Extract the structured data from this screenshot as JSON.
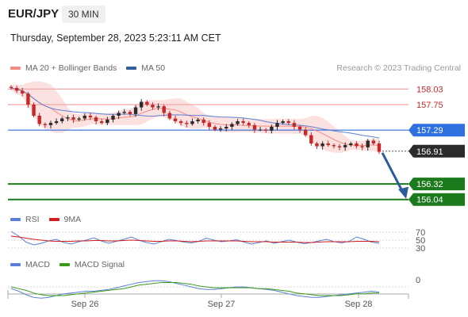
{
  "header": {
    "symbol": "EUR/JPY",
    "timeframe": "30 MIN",
    "timestamp": "Thursday, September 28, 2023 5:23:11 AM CET",
    "credit": "Research © 2023 Trading Central"
  },
  "legends": {
    "main": [
      {
        "label": "MA 20 + Bollinger Bands",
        "color": "#f28b82"
      },
      {
        "label": "MA 50",
        "color": "#2f5f9e"
      }
    ],
    "rsi": [
      {
        "label": "RSI",
        "color": "#5b7fd6"
      },
      {
        "label": "9MA",
        "color": "#d11f1f"
      }
    ],
    "macd": [
      {
        "label": "MACD",
        "color": "#5b7fd6"
      },
      {
        "label": "MACD Signal",
        "color": "#3a9a1a"
      }
    ]
  },
  "colors": {
    "resistance": "#f4a6a6",
    "resistance_text": "#c62828",
    "pivot": "#2f6fe0",
    "support": "#1b7a1b",
    "current": "#2b2b2b",
    "arrow": "#2a5d9b",
    "candle_up": "#2b2b2b",
    "candle_down": "#c62828",
    "band_fill": "#fbdcdc"
  },
  "chart_data": [
    {
      "type": "candlestick",
      "title": "EUR/JPY 30 MIN",
      "x_ticks": [
        "Sep 26",
        "Sep 27",
        "Sep 28"
      ],
      "ylim": [
        155.95,
        158.15
      ],
      "levels": [
        {
          "label": "158.03",
          "value": 158.03,
          "kind": "resistance"
        },
        {
          "label": "157.75",
          "value": 157.75,
          "kind": "resistance"
        },
        {
          "label": "157.29",
          "value": 157.29,
          "kind": "pivot"
        },
        {
          "label": "156.91",
          "value": 156.91,
          "kind": "current"
        },
        {
          "label": "156.32",
          "value": 156.32,
          "kind": "support"
        },
        {
          "label": "156.04",
          "value": 156.04,
          "kind": "support"
        }
      ],
      "forecast_arrow": {
        "from": 156.91,
        "to": 156.11
      },
      "close_series": [
        158.05,
        158.0,
        157.95,
        157.75,
        157.55,
        157.4,
        157.38,
        157.42,
        157.45,
        157.5,
        157.52,
        157.48,
        157.5,
        157.55,
        157.52,
        157.45,
        157.42,
        157.48,
        157.55,
        157.6,
        157.62,
        157.58,
        157.7,
        157.8,
        157.75,
        157.7,
        157.72,
        157.6,
        157.5,
        157.45,
        157.42,
        157.4,
        157.45,
        157.48,
        157.42,
        157.35,
        157.3,
        157.32,
        157.35,
        157.4,
        157.45,
        157.42,
        157.38,
        157.3,
        157.3,
        157.28,
        157.35,
        157.42,
        157.45,
        157.42,
        157.35,
        157.3,
        157.2,
        157.05,
        157.0,
        157.05,
        157.02,
        157.0,
        156.98,
        157.02,
        157.05,
        157.0,
        156.98,
        157.1,
        157.05,
        156.9
      ]
    },
    {
      "type": "line",
      "title": "RSI",
      "ticks": [
        "70",
        "50",
        "30"
      ],
      "series": [
        {
          "name": "RSI",
          "values": [
            72,
            60,
            45,
            38,
            42,
            48,
            52,
            44,
            40,
            46,
            50,
            56,
            48,
            42,
            47,
            52,
            58,
            50,
            44,
            40,
            46,
            52,
            49,
            45,
            43,
            47,
            55,
            50,
            46,
            48,
            51,
            45,
            40,
            44,
            48,
            42,
            46,
            50,
            45,
            41,
            44,
            48,
            52,
            46,
            43,
            47,
            58,
            52,
            45,
            42
          ]
        },
        {
          "name": "9MA",
          "values": [
            60,
            58,
            55,
            52,
            50,
            48,
            47,
            47,
            47,
            48,
            48,
            49,
            49,
            48,
            48,
            49,
            50,
            49,
            48,
            47,
            47,
            48,
            48,
            47,
            46,
            47,
            48,
            48,
            48,
            48,
            48,
            47,
            46,
            46,
            46,
            45,
            45,
            45,
            45,
            44,
            44,
            45,
            46,
            46,
            46,
            46,
            47,
            47,
            47,
            46
          ]
        }
      ]
    },
    {
      "type": "line",
      "title": "MACD",
      "ticks": [
        "0"
      ],
      "series": [
        {
          "name": "MACD",
          "values": [
            -0.02,
            -0.05,
            -0.09,
            -0.12,
            -0.13,
            -0.12,
            -0.1,
            -0.08,
            -0.07,
            -0.06,
            -0.05,
            -0.05,
            -0.04,
            -0.03,
            -0.01,
            0.01,
            0.03,
            0.05,
            0.06,
            0.07,
            0.07,
            0.06,
            0.04,
            0.02,
            0.0,
            -0.02,
            -0.03,
            -0.03,
            -0.02,
            -0.01,
            0.0,
            0.0,
            -0.01,
            -0.02,
            -0.03,
            -0.04,
            -0.06,
            -0.08,
            -0.1,
            -0.11,
            -0.12,
            -0.12,
            -0.11,
            -0.1,
            -0.09,
            -0.08,
            -0.07,
            -0.06,
            -0.05,
            -0.06
          ]
        },
        {
          "name": "MACD Signal",
          "values": [
            0.0,
            -0.02,
            -0.04,
            -0.07,
            -0.09,
            -0.1,
            -0.1,
            -0.1,
            -0.09,
            -0.08,
            -0.07,
            -0.06,
            -0.05,
            -0.04,
            -0.03,
            -0.02,
            0.0,
            0.02,
            0.03,
            0.04,
            0.05,
            0.05,
            0.05,
            0.04,
            0.03,
            0.01,
            0.0,
            -0.01,
            -0.01,
            -0.01,
            -0.01,
            -0.01,
            -0.01,
            -0.02,
            -0.02,
            -0.03,
            -0.04,
            -0.05,
            -0.07,
            -0.08,
            -0.09,
            -0.1,
            -0.1,
            -0.1,
            -0.1,
            -0.09,
            -0.08,
            -0.08,
            -0.07,
            -0.07
          ]
        }
      ]
    }
  ]
}
